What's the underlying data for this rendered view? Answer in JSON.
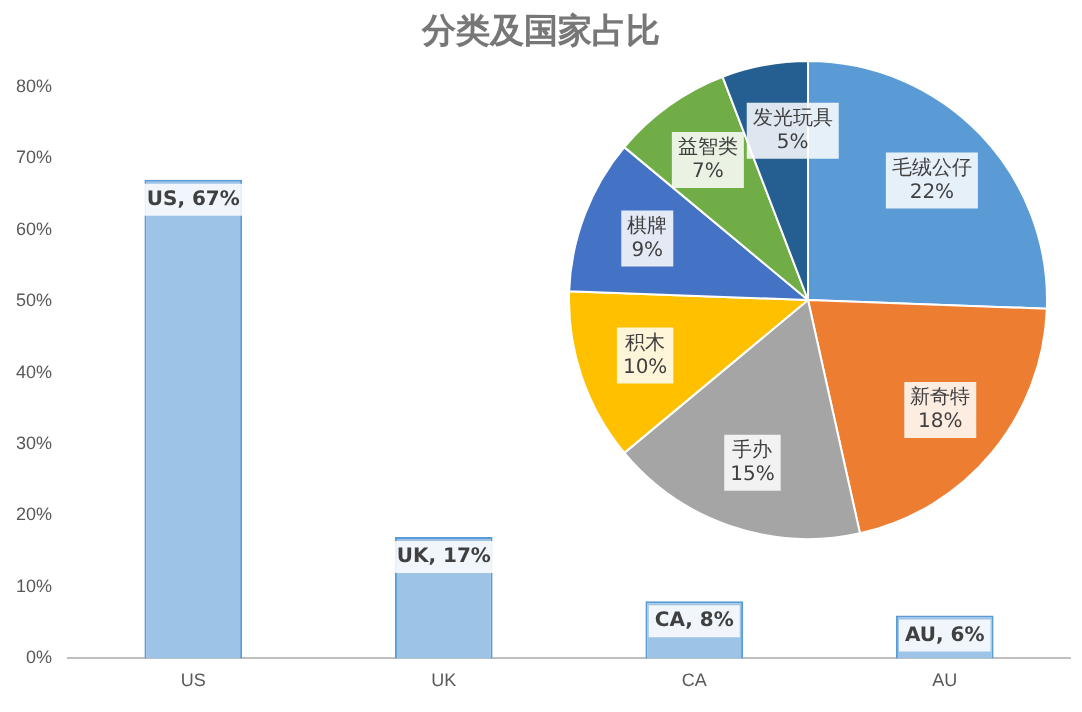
{
  "chart_data": [
    {
      "type": "bar",
      "title": "分类及国家占比",
      "categories": [
        "US",
        "UK",
        "CA",
        "AU"
      ],
      "values": [
        67,
        17,
        8,
        6
      ],
      "color": "#9dc3e6",
      "ylim": [
        0,
        80
      ],
      "yticks": [
        {
          "value": 0,
          "label": "0%"
        },
        {
          "value": 10,
          "label": "10%"
        },
        {
          "value": 20,
          "label": "20%"
        },
        {
          "value": 30,
          "label": "30%"
        },
        {
          "value": 40,
          "label": "40%"
        },
        {
          "value": 50,
          "label": "50%"
        },
        {
          "value": 60,
          "label": "60%"
        },
        {
          "value": 70,
          "label": "70%"
        },
        {
          "value": 80,
          "label": "80%"
        }
      ],
      "value_labels": [
        "US, 67%",
        "UK, 17%",
        "CA, 8%",
        "AU, 6%"
      ]
    },
    {
      "type": "pie",
      "categories": [
        "毛绒公仔",
        "新奇特",
        "手办",
        "积木",
        "棋牌",
        "益智类",
        "发光玩具"
      ],
      "values": [
        22,
        18,
        15,
        10,
        9,
        7,
        5
      ],
      "colors": [
        "#5b9bd5",
        "#ed7d31",
        "#a5a5a5",
        "#ffc000",
        "#4472c4",
        "#70ad47",
        "#255e91"
      ],
      "value_labels": [
        "22%",
        "18%",
        "15%",
        "10%",
        "9%",
        "7%",
        "5%"
      ]
    }
  ]
}
